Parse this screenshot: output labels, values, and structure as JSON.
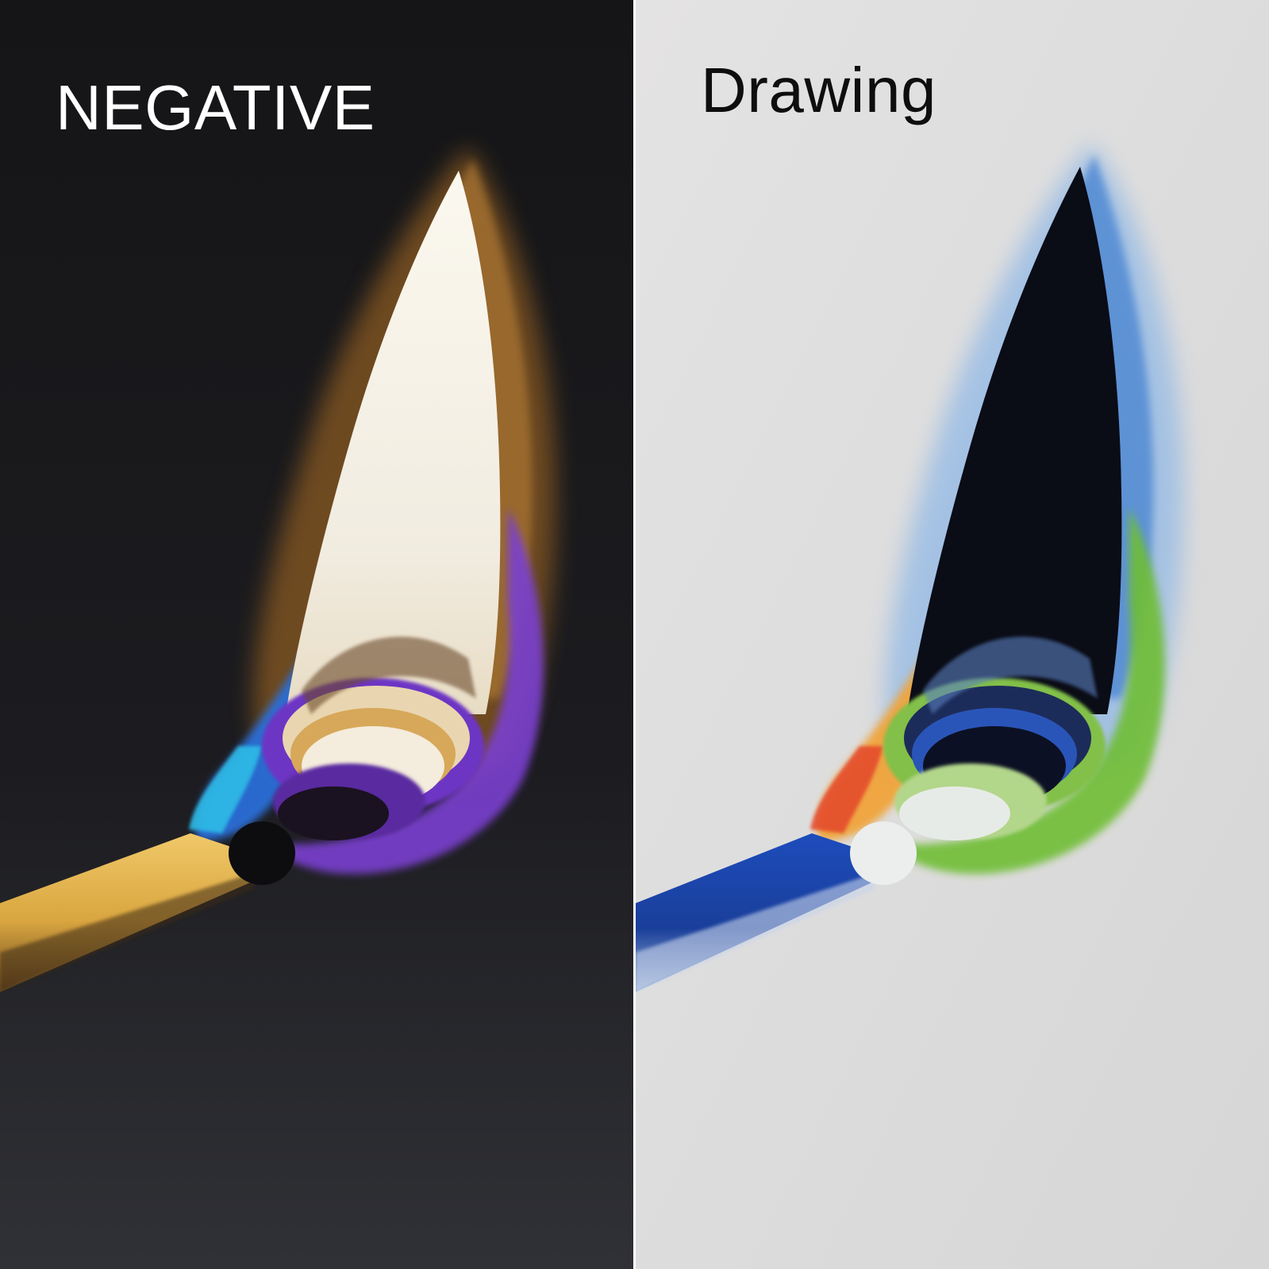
{
  "panels": {
    "left": {
      "label": "NEGATIVE",
      "colors": {
        "background": "#1b1b1e",
        "flame_core": "#f4f1e8",
        "flame_halo": "#8a5a22",
        "flame_edge": "#7a3fd0",
        "flame_base": "#2c6ed8",
        "matchstick": "#e4b44e",
        "label": "#ffffff"
      }
    },
    "right": {
      "label": "Drawing",
      "colors": {
        "background": "#dedede",
        "flame_core": "#0a0c16",
        "flame_halo": "#4f8ed8",
        "flame_edge": "#6fbe34",
        "flame_base": "#e97a2a",
        "matchstick": "#1e4fbb",
        "label": "#0e0e0e"
      }
    }
  }
}
